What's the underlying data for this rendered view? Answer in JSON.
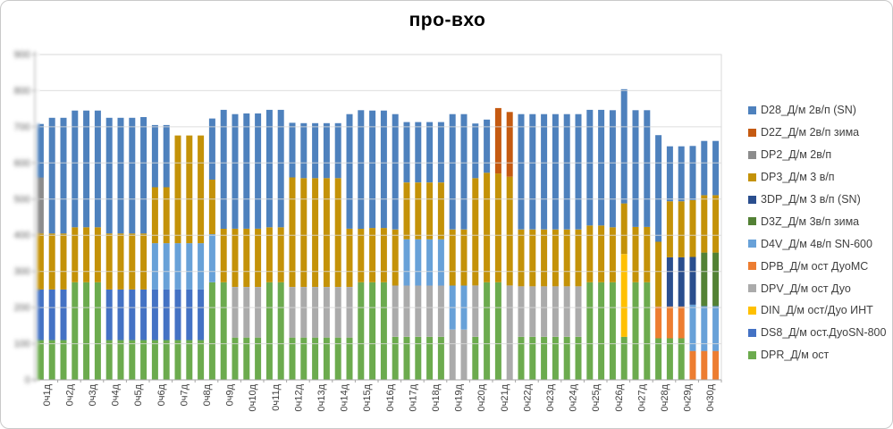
{
  "chart_data": {
    "type": "bar",
    "stacked": true,
    "title": "про-вхо",
    "xlabel": "",
    "ylabel": "",
    "grid": true,
    "legend_position": "right",
    "bars_per_category": 2,
    "y_axis": {
      "min": 0,
      "max": 900,
      "grid_interval": 100,
      "tick_labels_blurred": true
    },
    "categories": [
      "0ч1д",
      "0ч2д",
      "0ч3д",
      "0ч4д",
      "0ч5д",
      "0ч6д",
      "0ч7д",
      "0ч8д",
      "0ч9д",
      "0ч10д",
      "0ч11д",
      "0ч12д",
      "0ч13д",
      "0ч14д",
      "0ч15д",
      "0ч16д",
      "0ч17д",
      "0ч18д",
      "0ч19д",
      "0ч20д",
      "0ч21д",
      "0ч22д",
      "0ч23д",
      "0ч24д",
      "0ч25д",
      "0ч26д",
      "0ч27д",
      "0ч28д",
      "0ч29д",
      "0ч30д"
    ],
    "series": [
      {
        "id": "D28",
        "label": "D28_Д/м 2в/п (SN)",
        "color": "#4E81BD"
      },
      {
        "id": "D2Z",
        "label": "D2Z_Д/м 2в/п зима",
        "color": "#C55A11"
      },
      {
        "id": "DP2",
        "label": "DP2_Д/м 2в/п",
        "color": "#8C8C8C"
      },
      {
        "id": "DP3",
        "label": "DP3_Д/м 3 в/п",
        "color": "#C49208"
      },
      {
        "id": "3DP",
        "label": "3DP_Д/м 3 в/п (SN)",
        "color": "#2A4E8E"
      },
      {
        "id": "D3Z",
        "label": "D3Z_Д/м 3в/п зима",
        "color": "#538135"
      },
      {
        "id": "D4V",
        "label": "D4V_Д/м 4в/п SN-600",
        "color": "#68A1D8"
      },
      {
        "id": "DPB",
        "label": "DPB_Д/м ост ДуоМС",
        "color": "#ED7D31"
      },
      {
        "id": "DPV",
        "label": "DPV_Д/м ост Дуо",
        "color": "#ABABAB"
      },
      {
        "id": "DIN",
        "label": "DIN_Д/м ост/Дуо ИНТ",
        "color": "#FFC000"
      },
      {
        "id": "DS8",
        "label": "DS8_Д/м ост.ДуоSN-800",
        "color": "#4472C4"
      },
      {
        "id": "DPR",
        "label": "DPR_Д/м ост",
        "color": "#6CAB4E"
      }
    ],
    "stack_order_bottom_to_top": [
      "DPR",
      "DS8",
      "DIN",
      "DPV",
      "DPB",
      "D4V",
      "D3Z",
      "3DP",
      "DP3",
      "DP2",
      "D2Z",
      "D28"
    ],
    "bars": [
      {
        "c": 0,
        "s": [
          [
            "DPR",
            110
          ],
          [
            "DS8",
            140
          ],
          [
            "DP3",
            155
          ],
          [
            "DP2",
            155
          ],
          [
            "D28",
            148
          ]
        ]
      },
      {
        "c": 0,
        "s": [
          [
            "DPR",
            110
          ],
          [
            "DS8",
            140
          ],
          [
            "DP3",
            155
          ],
          [
            "D28",
            320
          ]
        ]
      },
      {
        "c": 1,
        "s": [
          [
            "DPR",
            110
          ],
          [
            "DS8",
            140
          ],
          [
            "DP3",
            155
          ],
          [
            "D28",
            320
          ]
        ]
      },
      {
        "c": 1,
        "s": [
          [
            "DPR",
            270
          ],
          [
            "DP3",
            152
          ],
          [
            "D28",
            323
          ]
        ]
      },
      {
        "c": 2,
        "s": [
          [
            "DPR",
            270
          ],
          [
            "DP3",
            152
          ],
          [
            "D28",
            323
          ]
        ]
      },
      {
        "c": 2,
        "s": [
          [
            "DPR",
            270
          ],
          [
            "DP3",
            152
          ],
          [
            "D28",
            323
          ]
        ]
      },
      {
        "c": 3,
        "s": [
          [
            "DPR",
            110
          ],
          [
            "DS8",
            140
          ],
          [
            "DP3",
            155
          ],
          [
            "D28",
            320
          ]
        ]
      },
      {
        "c": 3,
        "s": [
          [
            "DPR",
            110
          ],
          [
            "DS8",
            140
          ],
          [
            "DP3",
            155
          ],
          [
            "D28",
            320
          ]
        ]
      },
      {
        "c": 4,
        "s": [
          [
            "DPR",
            110
          ],
          [
            "DS8",
            140
          ],
          [
            "DP3",
            155
          ],
          [
            "D28",
            320
          ]
        ]
      },
      {
        "c": 4,
        "s": [
          [
            "DPR",
            110
          ],
          [
            "DS8",
            140
          ],
          [
            "DP3",
            155
          ],
          [
            "D28",
            322
          ]
        ]
      },
      {
        "c": 5,
        "s": [
          [
            "DPR",
            110
          ],
          [
            "DS8",
            140
          ],
          [
            "D4V",
            128
          ],
          [
            "DP3",
            155
          ],
          [
            "D28",
            172
          ]
        ]
      },
      {
        "c": 5,
        "s": [
          [
            "DPR",
            110
          ],
          [
            "DS8",
            140
          ],
          [
            "D4V",
            128
          ],
          [
            "DP3",
            155
          ],
          [
            "D28",
            172
          ]
        ]
      },
      {
        "c": 6,
        "s": [
          [
            "DPR",
            110
          ],
          [
            "DS8",
            140
          ],
          [
            "D4V",
            128
          ],
          [
            "DP3",
            298
          ]
        ]
      },
      {
        "c": 6,
        "s": [
          [
            "DPR",
            110
          ],
          [
            "DS8",
            140
          ],
          [
            "D4V",
            128
          ],
          [
            "DP3",
            298
          ]
        ]
      },
      {
        "c": 7,
        "s": [
          [
            "DPR",
            110
          ],
          [
            "DS8",
            140
          ],
          [
            "D4V",
            128
          ],
          [
            "DP3",
            298
          ]
        ]
      },
      {
        "c": 7,
        "s": [
          [
            "DPR",
            270
          ],
          [
            "D4V",
            133
          ],
          [
            "DP3",
            151
          ],
          [
            "D28",
            169
          ]
        ]
      },
      {
        "c": 8,
        "s": [
          [
            "DPR",
            270
          ],
          [
            "DP3",
            148
          ],
          [
            "D28",
            329
          ]
        ]
      },
      {
        "c": 8,
        "s": [
          [
            "DPR",
            117
          ],
          [
            "DPV",
            140
          ],
          [
            "DP3",
            161
          ],
          [
            "D28",
            317
          ]
        ]
      },
      {
        "c": 9,
        "s": [
          [
            "DPR",
            117
          ],
          [
            "DPV",
            140
          ],
          [
            "DP3",
            161
          ],
          [
            "D28",
            319
          ]
        ]
      },
      {
        "c": 9,
        "s": [
          [
            "DPR",
            117
          ],
          [
            "DPV",
            140
          ],
          [
            "DP3",
            161
          ],
          [
            "D28",
            319
          ]
        ]
      },
      {
        "c": 10,
        "s": [
          [
            "DPR",
            270
          ],
          [
            "DP3",
            152
          ],
          [
            "D28",
            325
          ]
        ]
      },
      {
        "c": 10,
        "s": [
          [
            "DPR",
            270
          ],
          [
            "DP3",
            152
          ],
          [
            "D28",
            325
          ]
        ]
      },
      {
        "c": 11,
        "s": [
          [
            "DPR",
            117
          ],
          [
            "DPV",
            140
          ],
          [
            "DP3",
            303
          ],
          [
            "D28",
            151
          ]
        ]
      },
      {
        "c": 11,
        "s": [
          [
            "DPR",
            117
          ],
          [
            "DPV",
            140
          ],
          [
            "DP3",
            301
          ],
          [
            "D28",
            152
          ]
        ]
      },
      {
        "c": 12,
        "s": [
          [
            "DPR",
            117
          ],
          [
            "DPV",
            140
          ],
          [
            "DP3",
            301
          ],
          [
            "D28",
            152
          ]
        ]
      },
      {
        "c": 12,
        "s": [
          [
            "DPR",
            117
          ],
          [
            "DPV",
            140
          ],
          [
            "DP3",
            301
          ],
          [
            "D28",
            152
          ]
        ]
      },
      {
        "c": 13,
        "s": [
          [
            "DPR",
            117
          ],
          [
            "DPV",
            140
          ],
          [
            "DP3",
            301
          ],
          [
            "D28",
            152
          ]
        ]
      },
      {
        "c": 13,
        "s": [
          [
            "DPR",
            117
          ],
          [
            "DPV",
            140
          ],
          [
            "DP3",
            161
          ],
          [
            "D28",
            317
          ]
        ]
      },
      {
        "c": 14,
        "s": [
          [
            "DPR",
            270
          ],
          [
            "DP3",
            148
          ],
          [
            "D28",
            328
          ]
        ]
      },
      {
        "c": 14,
        "s": [
          [
            "DPR",
            270
          ],
          [
            "DP3",
            150
          ],
          [
            "D28",
            325
          ]
        ]
      },
      {
        "c": 15,
        "s": [
          [
            "DPR",
            270
          ],
          [
            "DP3",
            150
          ],
          [
            "D28",
            325
          ]
        ]
      },
      {
        "c": 15,
        "s": [
          [
            "DPR",
            119
          ],
          [
            "DPV",
            142
          ],
          [
            "DP3",
            155
          ],
          [
            "D28",
            319
          ]
        ]
      },
      {
        "c": 16,
        "s": [
          [
            "DPR",
            119
          ],
          [
            "DPV",
            142
          ],
          [
            "D4V",
            128
          ],
          [
            "DP3",
            157
          ],
          [
            "D28",
            167
          ]
        ]
      },
      {
        "c": 16,
        "s": [
          [
            "DPR",
            119
          ],
          [
            "DPV",
            142
          ],
          [
            "D4V",
            128
          ],
          [
            "DP3",
            157
          ],
          [
            "D28",
            167
          ]
        ]
      },
      {
        "c": 17,
        "s": [
          [
            "DPR",
            119
          ],
          [
            "DPV",
            142
          ],
          [
            "D4V",
            128
          ],
          [
            "DP3",
            157
          ],
          [
            "D28",
            167
          ]
        ]
      },
      {
        "c": 17,
        "s": [
          [
            "DPR",
            119
          ],
          [
            "DPV",
            142
          ],
          [
            "D4V",
            128
          ],
          [
            "DP3",
            157
          ],
          [
            "D28",
            167
          ]
        ]
      },
      {
        "c": 18,
        "s": [
          [
            "DPV",
            139
          ],
          [
            "D4V",
            122
          ],
          [
            "DP3",
            155
          ],
          [
            "D28",
            319
          ]
        ]
      },
      {
        "c": 18,
        "s": [
          [
            "DPV",
            139
          ],
          [
            "D4V",
            122
          ],
          [
            "DP3",
            155
          ],
          [
            "D28",
            319
          ]
        ]
      },
      {
        "c": 19,
        "s": [
          [
            "DPR",
            119
          ],
          [
            "DPV",
            142
          ],
          [
            "DP3",
            297
          ],
          [
            "D28",
            151
          ]
        ]
      },
      {
        "c": 19,
        "s": [
          [
            "DPR",
            270
          ],
          [
            "DP3",
            303
          ],
          [
            "D28",
            147
          ]
        ]
      },
      {
        "c": 20,
        "s": [
          [
            "DPR",
            270
          ],
          [
            "DP3",
            301
          ],
          [
            "D2Z",
            181
          ]
        ]
      },
      {
        "c": 20,
        "s": [
          [
            "DPV",
            261
          ],
          [
            "DP3",
            301
          ],
          [
            "D2Z",
            179
          ]
        ]
      },
      {
        "c": 21,
        "s": [
          [
            "DPR",
            119
          ],
          [
            "DPV",
            140
          ],
          [
            "DP3",
            157
          ],
          [
            "D28",
            319
          ]
        ]
      },
      {
        "c": 21,
        "s": [
          [
            "DPR",
            119
          ],
          [
            "DPV",
            140
          ],
          [
            "DP3",
            157
          ],
          [
            "D28",
            319
          ]
        ]
      },
      {
        "c": 22,
        "s": [
          [
            "DPR",
            119
          ],
          [
            "DPV",
            140
          ],
          [
            "DP3",
            157
          ],
          [
            "D28",
            319
          ]
        ]
      },
      {
        "c": 22,
        "s": [
          [
            "DPR",
            119
          ],
          [
            "DPV",
            140
          ],
          [
            "DP3",
            157
          ],
          [
            "D28",
            319
          ]
        ]
      },
      {
        "c": 23,
        "s": [
          [
            "DPR",
            119
          ],
          [
            "DPV",
            140
          ],
          [
            "DP3",
            157
          ],
          [
            "D28",
            319
          ]
        ]
      },
      {
        "c": 23,
        "s": [
          [
            "DPR",
            119
          ],
          [
            "DPV",
            140
          ],
          [
            "DP3",
            157
          ],
          [
            "D28",
            319
          ]
        ]
      },
      {
        "c": 24,
        "s": [
          [
            "DPR",
            270
          ],
          [
            "DP3",
            157
          ],
          [
            "D28",
            320
          ]
        ]
      },
      {
        "c": 24,
        "s": [
          [
            "DPR",
            270
          ],
          [
            "DP3",
            157
          ],
          [
            "D28",
            320
          ]
        ]
      },
      {
        "c": 25,
        "s": [
          [
            "DPR",
            270
          ],
          [
            "DP3",
            152
          ],
          [
            "D28",
            324
          ]
        ]
      },
      {
        "c": 25,
        "s": [
          [
            "DPR",
            119
          ],
          [
            "DIN",
            229
          ],
          [
            "DP3",
            140
          ],
          [
            "D28",
            316
          ]
        ]
      },
      {
        "c": 26,
        "s": [
          [
            "DPR",
            270
          ],
          [
            "DP3",
            153
          ],
          [
            "D28",
            323
          ]
        ]
      },
      {
        "c": 26,
        "s": [
          [
            "DPR",
            270
          ],
          [
            "DP3",
            153
          ],
          [
            "D28",
            323
          ]
        ]
      },
      {
        "c": 27,
        "s": [
          [
            "DPR",
            115
          ],
          [
            "DPB",
            88
          ],
          [
            "DP3",
            179
          ],
          [
            "D28",
            295
          ]
        ]
      },
      {
        "c": 27,
        "s": [
          [
            "DPR",
            115
          ],
          [
            "DPB",
            88
          ],
          [
            "3DP",
            136
          ],
          [
            "DP3",
            155
          ],
          [
            "D28",
            152
          ]
        ]
      },
      {
        "c": 28,
        "s": [
          [
            "DPR",
            115
          ],
          [
            "DPB",
            88
          ],
          [
            "3DP",
            136
          ],
          [
            "DP3",
            155
          ],
          [
            "D28",
            152
          ]
        ]
      },
      {
        "c": 28,
        "s": [
          [
            "DPB",
            80
          ],
          [
            "D4V",
            128
          ],
          [
            "3DP",
            132
          ],
          [
            "DP3",
            157
          ],
          [
            "D28",
            150
          ]
        ]
      },
      {
        "c": 29,
        "s": [
          [
            "DPB",
            80
          ],
          [
            "D4V",
            124
          ],
          [
            "D3Z",
            148
          ],
          [
            "DP3",
            159
          ],
          [
            "D28",
            150
          ]
        ]
      },
      {
        "c": 29,
        "s": [
          [
            "DPB",
            80
          ],
          [
            "D4V",
            124
          ],
          [
            "D3Z",
            148
          ],
          [
            "DP3",
            159
          ],
          [
            "D28",
            150
          ]
        ]
      }
    ]
  }
}
